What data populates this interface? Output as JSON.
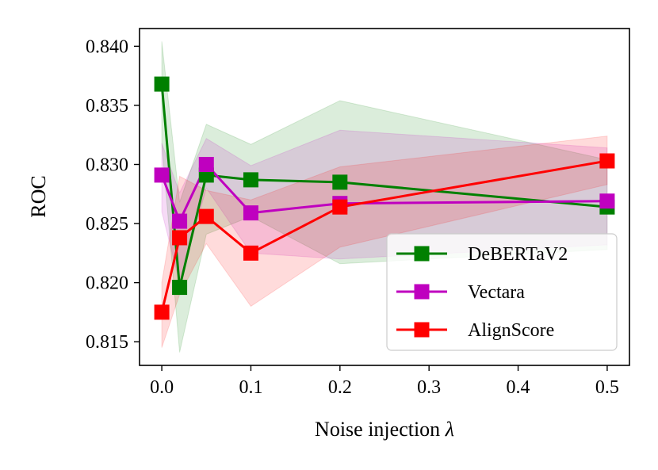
{
  "chart_data": {
    "type": "line",
    "title": "",
    "xlabel": "Noise injection",
    "xlabel_symbol": "λ",
    "ylabel": "ROC",
    "x": [
      0.0,
      0.02,
      0.05,
      0.1,
      0.2,
      0.5
    ],
    "xlim": [
      -0.025,
      0.525
    ],
    "ylim": [
      0.813,
      0.8415
    ],
    "xticks": [
      0.0,
      0.1,
      0.2,
      0.3,
      0.4,
      0.5
    ],
    "xtick_labels": [
      "0.0",
      "0.1",
      "0.2",
      "0.3",
      "0.4",
      "0.5"
    ],
    "yticks": [
      0.815,
      0.82,
      0.825,
      0.83,
      0.835,
      0.84
    ],
    "ytick_labels": [
      "0.815",
      "0.820",
      "0.825",
      "0.830",
      "0.835",
      "0.840"
    ],
    "grid": false,
    "legend_position": "lower-right",
    "series": [
      {
        "name": "DeBERTaV2",
        "color": "#008000",
        "marker": "square",
        "values": [
          0.8368,
          0.8196,
          0.8291,
          0.8287,
          0.8285,
          0.8264
        ],
        "band_upper": [
          0.8404,
          0.8268,
          0.8334,
          0.8317,
          0.8354,
          0.8304
        ],
        "band_lower": [
          0.8318,
          0.8141,
          0.8241,
          0.8256,
          0.8216,
          0.8228
        ]
      },
      {
        "name": "Vectara",
        "color": "#bf00bf",
        "marker": "square",
        "values": [
          0.8291,
          0.8252,
          0.83,
          0.8259,
          0.8267,
          0.8269
        ],
        "band_upper": [
          0.8318,
          0.8276,
          0.8322,
          0.8299,
          0.8329,
          0.8314
        ],
        "band_lower": [
          0.826,
          0.82,
          0.828,
          0.8225,
          0.822,
          0.8232
        ]
      },
      {
        "name": "AlignScore",
        "color": "#ff0000",
        "marker": "square",
        "values": [
          0.8175,
          0.8238,
          0.8256,
          0.8225,
          0.8264,
          0.8303
        ],
        "band_upper": [
          0.82,
          0.829,
          0.8278,
          0.827,
          0.8298,
          0.8324
        ],
        "band_lower": [
          0.8145,
          0.819,
          0.8233,
          0.818,
          0.823,
          0.8283
        ]
      }
    ]
  }
}
